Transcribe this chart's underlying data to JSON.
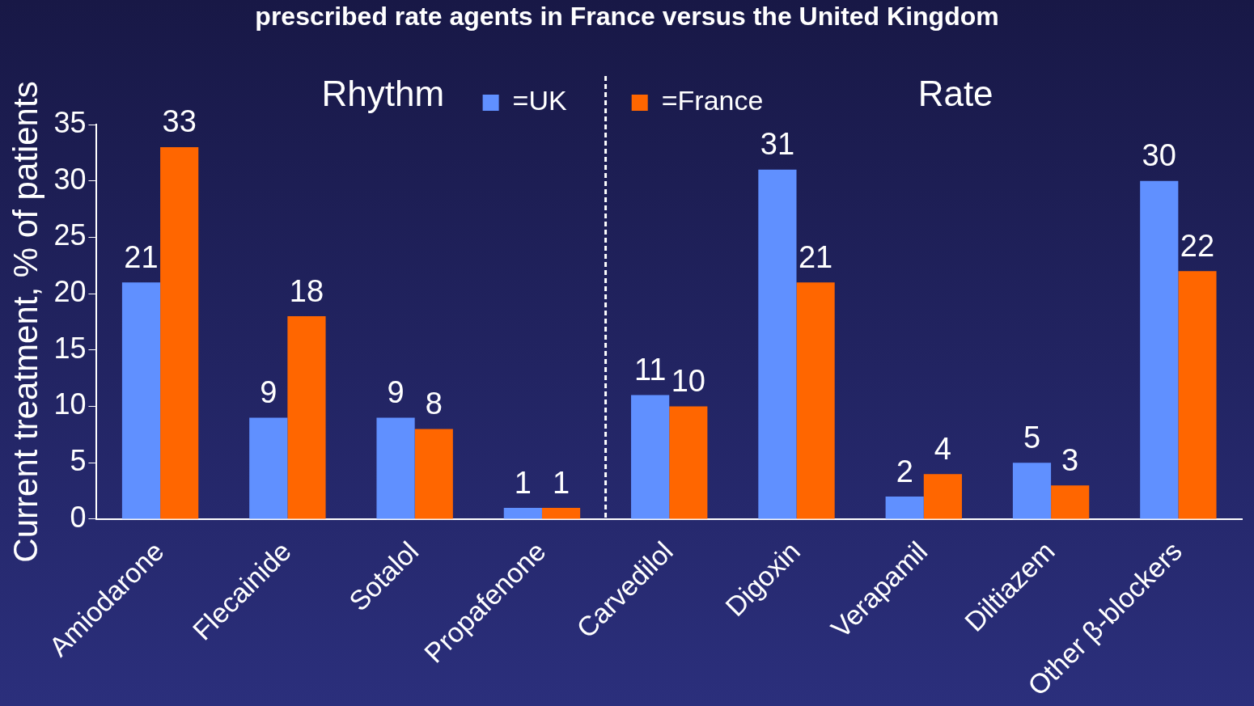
{
  "chart_data": {
    "type": "bar",
    "title": "prescribed rate agents in France versus the United Kingdom",
    "ylabel": "Current treatment, % of patients",
    "categories": [
      "Amiodarone",
      "Flecainide",
      "Sotalol",
      "Propafenone",
      "Carvedilol",
      "Digoxin",
      "Verapamil",
      "Diltiazem",
      "Other β-blockers"
    ],
    "series": [
      {
        "name": "=UK",
        "color": "#6090ff",
        "values": [
          21,
          9,
          9,
          1,
          11,
          31,
          2,
          5,
          30
        ]
      },
      {
        "name": "=France",
        "color": "#ff6600",
        "values": [
          33,
          18,
          8,
          1,
          10,
          21,
          4,
          3,
          22
        ]
      }
    ],
    "ylim": [
      0,
      35
    ],
    "yticks": [
      0,
      5,
      10,
      15,
      20,
      25,
      30,
      35
    ],
    "grid": false,
    "legend": "top",
    "data_labels": true,
    "annotations": [
      "Rhythm",
      "Rate"
    ]
  }
}
